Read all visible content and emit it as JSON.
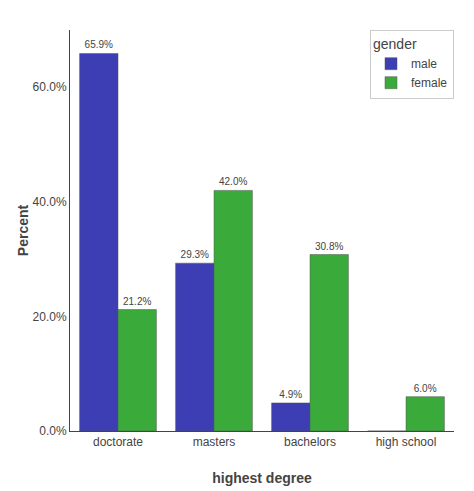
{
  "chart_data": {
    "type": "bar",
    "xlabel": "highest degree",
    "ylabel": "Percent",
    "categories": [
      "doctorate",
      "masters",
      "bachelors",
      "high school"
    ],
    "series": [
      {
        "name": "male",
        "color": "#3d3db4",
        "values": [
          65.9,
          29.3,
          4.9,
          0.0
        ],
        "value_labels": [
          "65.9%",
          "29.3%",
          "4.9%",
          null
        ]
      },
      {
        "name": "female",
        "color": "#3aaa3a",
        "values": [
          21.2,
          42.0,
          30.8,
          6.0
        ],
        "value_labels": [
          "21.2%",
          "42.0%",
          "30.8%",
          "6.0%"
        ]
      }
    ],
    "legend_title": "gender",
    "legend": "upper right",
    "ylim": [
      0,
      70
    ],
    "yticks": [
      {
        "value": 0,
        "label": "0.0%"
      },
      {
        "value": 20,
        "label": "20.0%"
      },
      {
        "value": 40,
        "label": "40.0%"
      },
      {
        "value": 60,
        "label": "60.0%"
      }
    ],
    "data_labels": true,
    "grid": false
  }
}
